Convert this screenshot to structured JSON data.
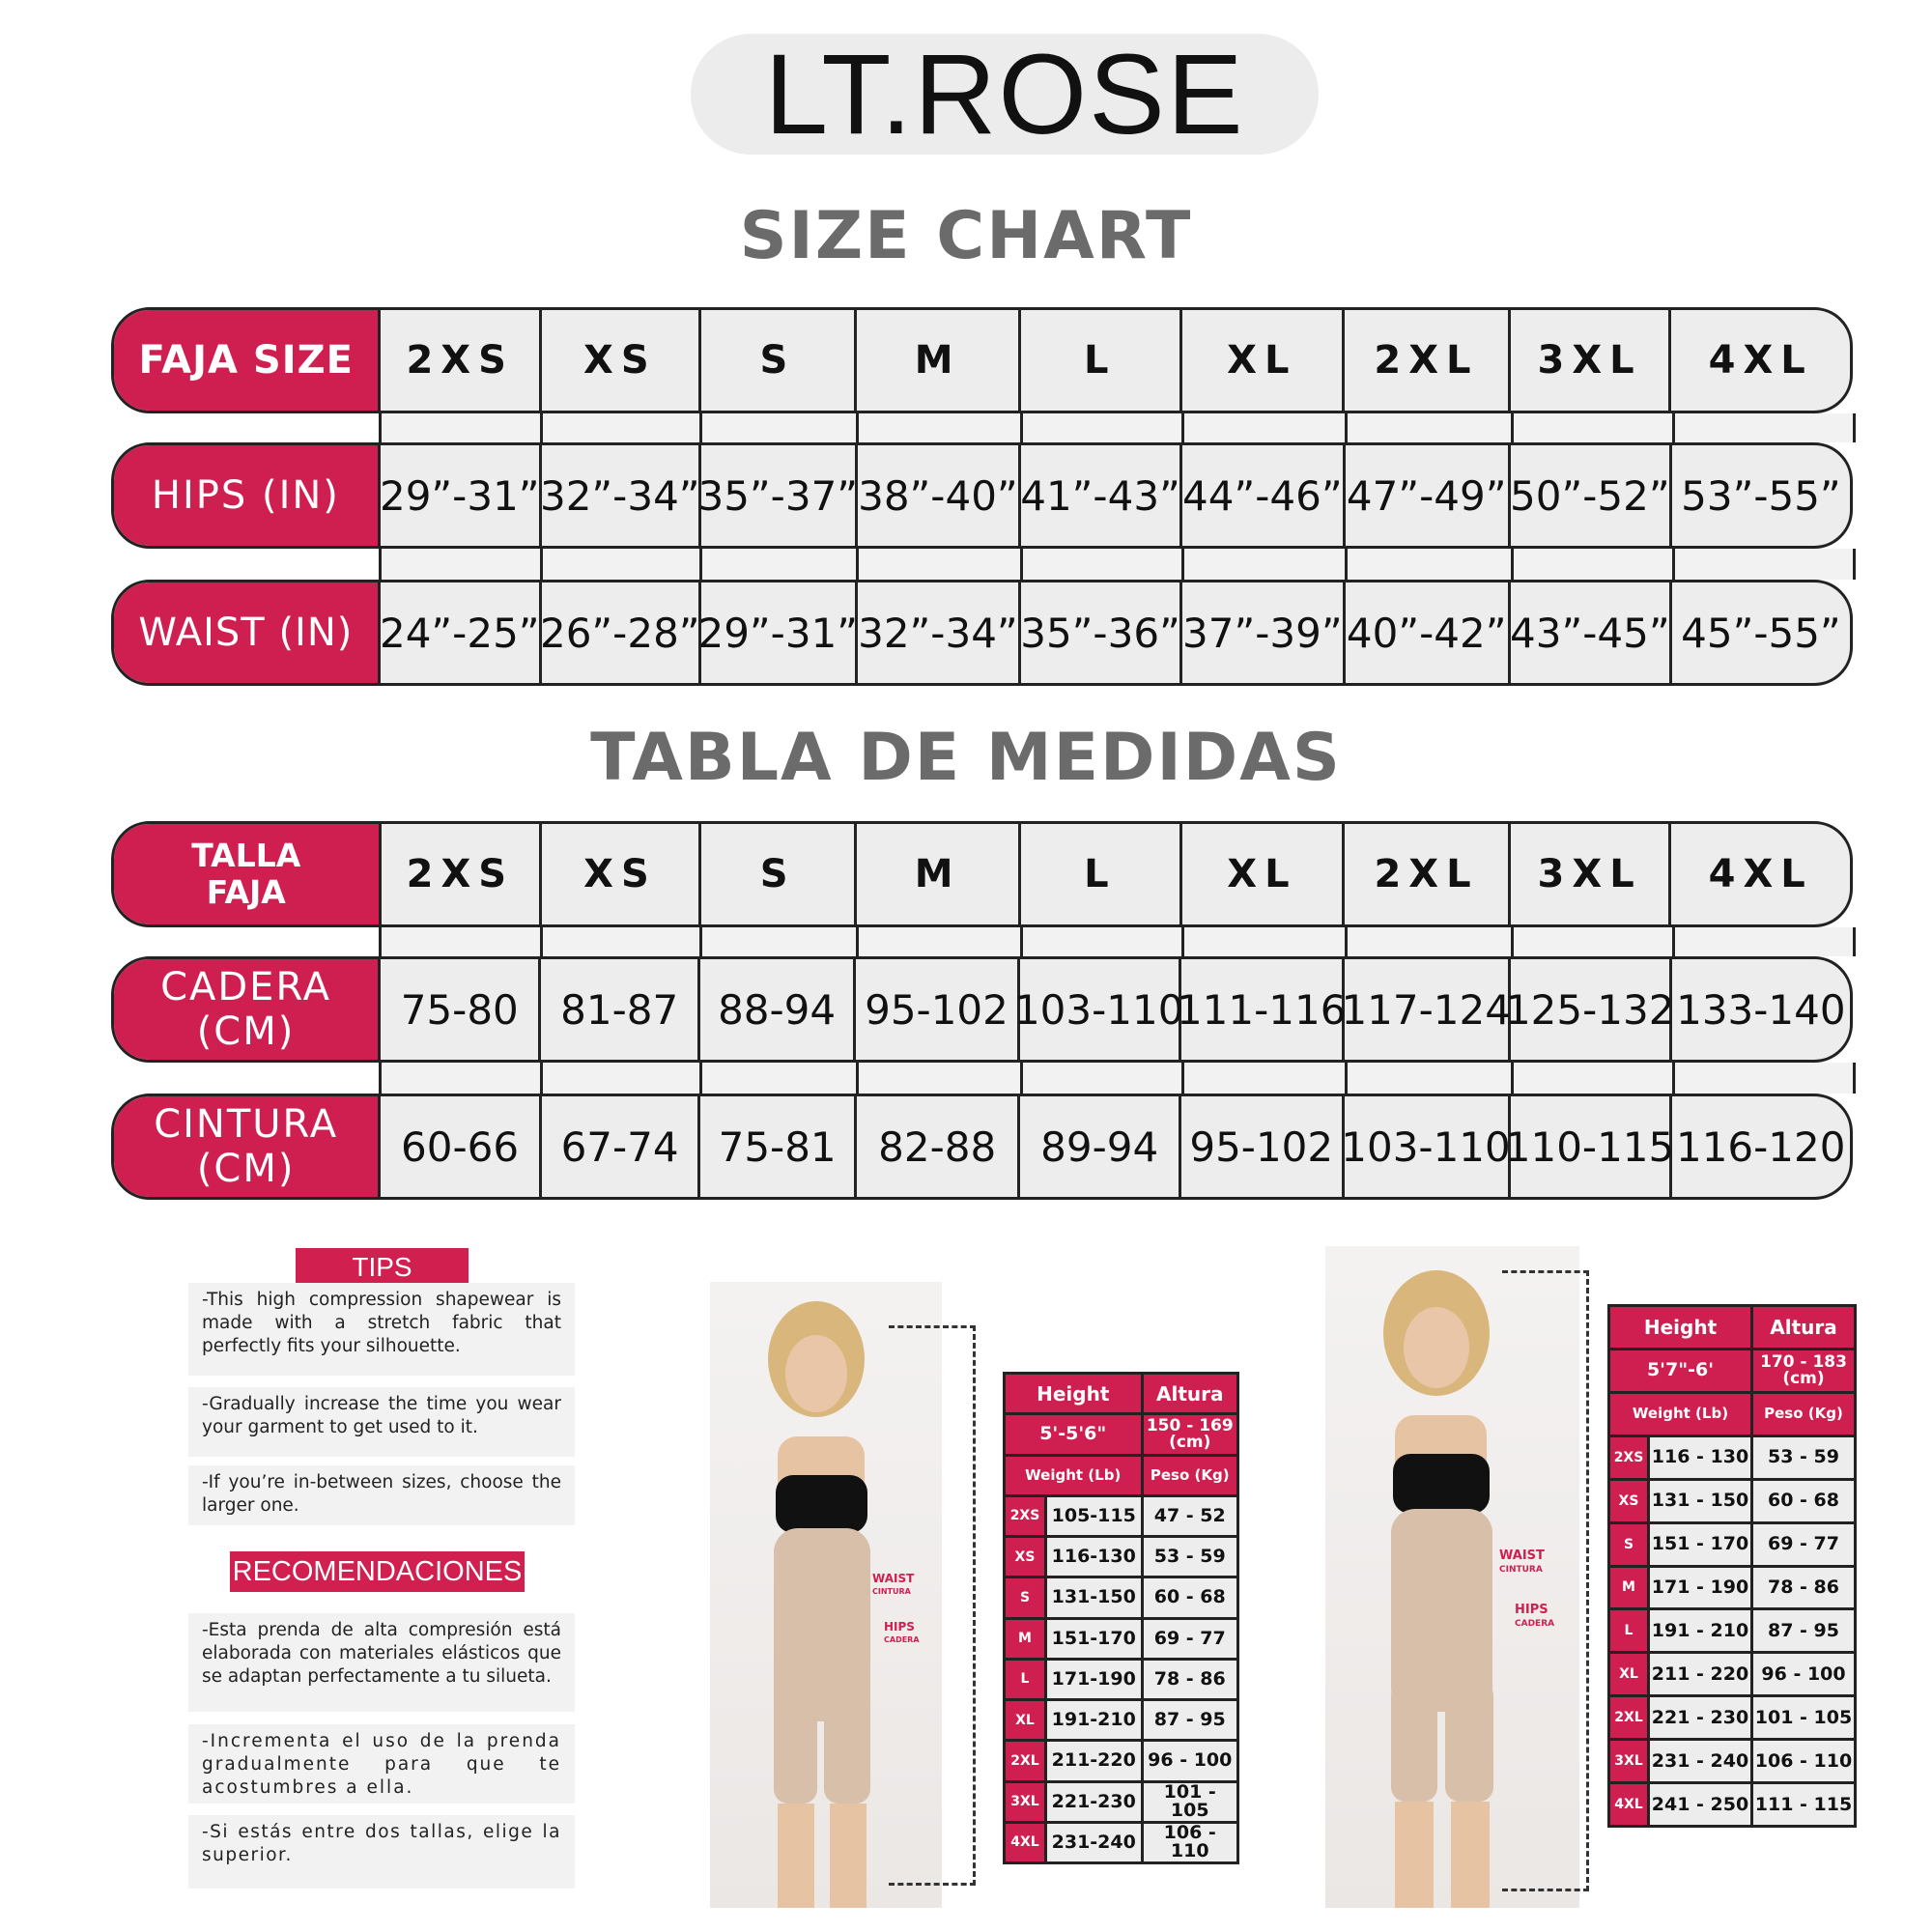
{
  "logo": {
    "text": "LT.ROSE"
  },
  "colors": {
    "accent": "#cf1f50",
    "heading": "#6b6b6b",
    "cell": "#ededed"
  },
  "size_chart": {
    "title": "SIZE CHART",
    "rows": [
      {
        "label": "FAJA SIZE",
        "values": [
          "2XS",
          "XS",
          "S",
          "M",
          "L",
          "XL",
          "2XL",
          "3XL",
          "4XL"
        ]
      },
      {
        "label": "HIPS (IN)",
        "values": [
          "29”-31”",
          "32”-34”",
          "35”-37”",
          "38”-40”",
          "41”-43”",
          "44”-46”",
          "47”-49”",
          "50”-52”",
          "53”-55”"
        ]
      },
      {
        "label": "WAIST (IN)",
        "values": [
          "24”-25”",
          "26”-28”",
          "29”-31”",
          "32”-34”",
          "35”-36”",
          "37”-39”",
          "40”-42”",
          "43”-45”",
          "45”-55”"
        ]
      }
    ]
  },
  "tabla_medidas": {
    "title": "TABLA DE MEDIDAS",
    "rows": [
      {
        "label": "TALLA FAJA",
        "values": [
          "2XS",
          "XS",
          "S",
          "M",
          "L",
          "XL",
          "2XL",
          "3XL",
          "4XL"
        ]
      },
      {
        "label": "CADERA (CM)",
        "values": [
          "75-80",
          "81-87",
          "88-94",
          "95-102",
          "103-110",
          "111-116",
          "117-124",
          "125-132",
          "133-140"
        ]
      },
      {
        "label": "CINTURA (CM)",
        "values": [
          "60-66",
          "67-74",
          "75-81",
          "82-88",
          "89-94",
          "95-102",
          "103-110",
          "110-115",
          "116-120"
        ]
      }
    ]
  },
  "tips": {
    "title": "TIPS",
    "items": [
      "-This high compression shapewear is made with a stretch fabric that perfectly fits your silhouette.",
      "-Gradually increase the time you wear your garment to get used to it.",
      "-If you’re in-between sizes, choose the larger one."
    ]
  },
  "recomendaciones": {
    "title": "RECOMENDACIONES",
    "items": [
      "-Esta prenda de alta compresión está elaborada con materiales elásticos que se adaptan perfectamente a tu silueta.",
      "-Incrementa el uso de la prenda gradualmente para que te acostumbres a ella.",
      "-Si estás entre dos tallas, elige la superior."
    ]
  },
  "photo_labels": {
    "waist": "WAIST",
    "cintura": "CINTURA",
    "hips": "HIPS",
    "cadera": "CADERA"
  },
  "small_tables": [
    {
      "height_label": "Height",
      "altura_label": "Altura",
      "height": "5'-5'6\"",
      "altura": "150 - 169 (cm)",
      "weight_label": "Weight (Lb)",
      "peso_label": "Peso (Kg)",
      "rows": [
        [
          "2XS",
          "105-115",
          "47 - 52"
        ],
        [
          "XS",
          "116-130",
          "53 - 59"
        ],
        [
          "S",
          "131-150",
          "60 - 68"
        ],
        [
          "M",
          "151-170",
          "69 - 77"
        ],
        [
          "L",
          "171-190",
          "78 - 86"
        ],
        [
          "XL",
          "191-210",
          "87 - 95"
        ],
        [
          "2XL",
          "211-220",
          "96 - 100"
        ],
        [
          "3XL",
          "221-230",
          "101 - 105"
        ],
        [
          "4XL",
          "231-240",
          "106 - 110"
        ]
      ]
    },
    {
      "height_label": "Height",
      "altura_label": "Altura",
      "height": "5'7\"-6'",
      "altura": "170 - 183 (cm)",
      "weight_label": "Weight (Lb)",
      "peso_label": "Peso (Kg)",
      "rows": [
        [
          "2XS",
          "116 - 130",
          "53 - 59"
        ],
        [
          "XS",
          "131 - 150",
          "60 - 68"
        ],
        [
          "S",
          "151 - 170",
          "69 - 77"
        ],
        [
          "M",
          "171 - 190",
          "78 - 86"
        ],
        [
          "L",
          "191 - 210",
          "87 - 95"
        ],
        [
          "XL",
          "211 - 220",
          "96 - 100"
        ],
        [
          "2XL",
          "221 - 230",
          "101 - 105"
        ],
        [
          "3XL",
          "231 - 240",
          "106 - 110"
        ],
        [
          "4XL",
          "241 - 250",
          "111 - 115"
        ]
      ]
    }
  ]
}
